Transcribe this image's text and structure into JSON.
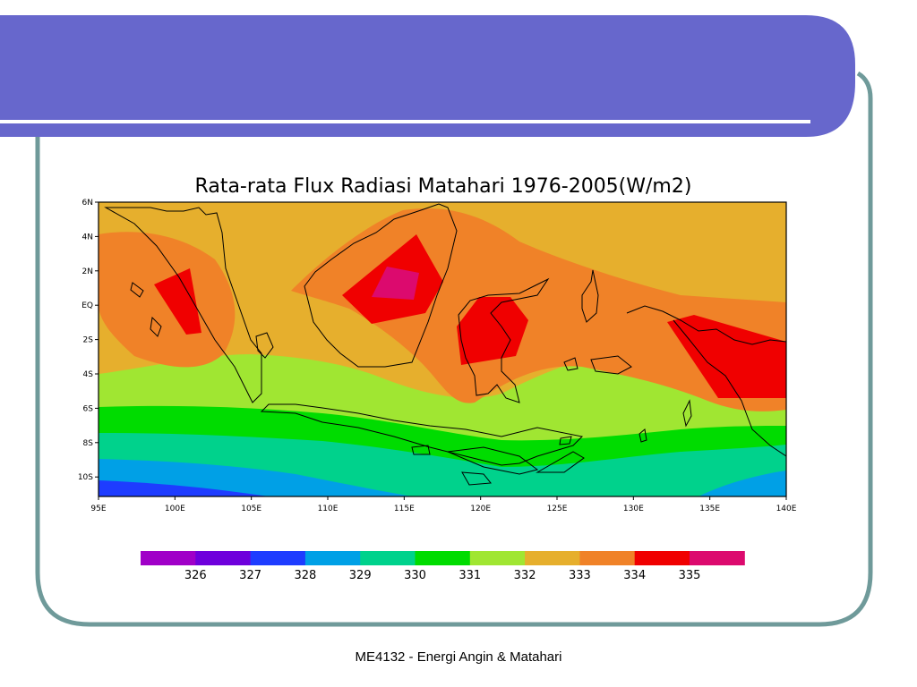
{
  "slide": {
    "footer": "ME4132 - Energi Angin & Matahari",
    "colors": {
      "header": "#6767cc",
      "frame": "#6f9a9a",
      "rule": "#ffffff"
    }
  },
  "map": {
    "title": "Rata-rata Flux Radiasi Matahari 1976-2005(W/m2)",
    "lon_ticks": [
      "95E",
      "100E",
      "105E",
      "110E",
      "115E",
      "120E",
      "125E",
      "130E",
      "135E",
      "140E"
    ],
    "lat_ticks": [
      "6N",
      "4N",
      "2N",
      "EQ",
      "2S",
      "4S",
      "6S",
      "8S",
      "10S"
    ],
    "legend": {
      "labels": [
        "326",
        "327",
        "328",
        "329",
        "330",
        "331",
        "332",
        "333",
        "334",
        "335"
      ],
      "colors": [
        "#a000c8",
        "#6e00dc",
        "#1e3cff",
        "#00a0e6",
        "#00d28c",
        "#00dc00",
        "#a0e632",
        "#e6af2d",
        "#f08228",
        "#f00000",
        "#dc0a6e"
      ]
    }
  }
}
